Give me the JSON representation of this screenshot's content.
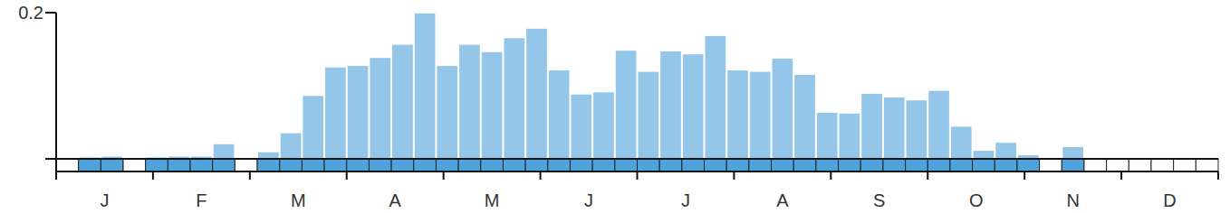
{
  "chart_data": {
    "type": "bar",
    "categories": [
      null,
      null,
      null,
      null,
      null,
      null,
      null,
      null,
      null,
      null,
      null,
      null,
      null,
      null,
      null,
      null,
      null,
      null,
      null,
      null,
      null,
      null,
      null,
      null,
      null,
      null,
      null,
      null,
      null,
      null,
      null,
      null,
      null,
      null,
      null,
      null,
      null,
      null,
      null,
      null,
      null,
      null,
      null,
      null,
      null,
      null,
      null,
      null,
      null,
      null,
      null,
      null
    ],
    "values": [
      null,
      0.002,
      0.003,
      null,
      0.002,
      0.003,
      0.003,
      0.02,
      null,
      0.009,
      0.035,
      0.086,
      0.125,
      0.127,
      0.138,
      0.156,
      0.199,
      0.127,
      0.156,
      0.146,
      0.165,
      0.178,
      0.121,
      0.088,
      0.091,
      0.148,
      0.119,
      0.147,
      0.143,
      0.168,
      0.121,
      0.119,
      0.137,
      0.115,
      0.063,
      0.062,
      0.089,
      0.084,
      0.08,
      0.093,
      0.044,
      0.011,
      0.022,
      0.005,
      null,
      0.016,
      null,
      null,
      null,
      null,
      null,
      null
    ],
    "months": [
      "J",
      "F",
      "M",
      "A",
      "M",
      "J",
      "J",
      "A",
      "S",
      "O",
      "N",
      "D"
    ],
    "color": "#93c6e8",
    "ylim": [
      0,
      0.2
    ],
    "yticks": [
      0.2
    ],
    "grid": false
  }
}
